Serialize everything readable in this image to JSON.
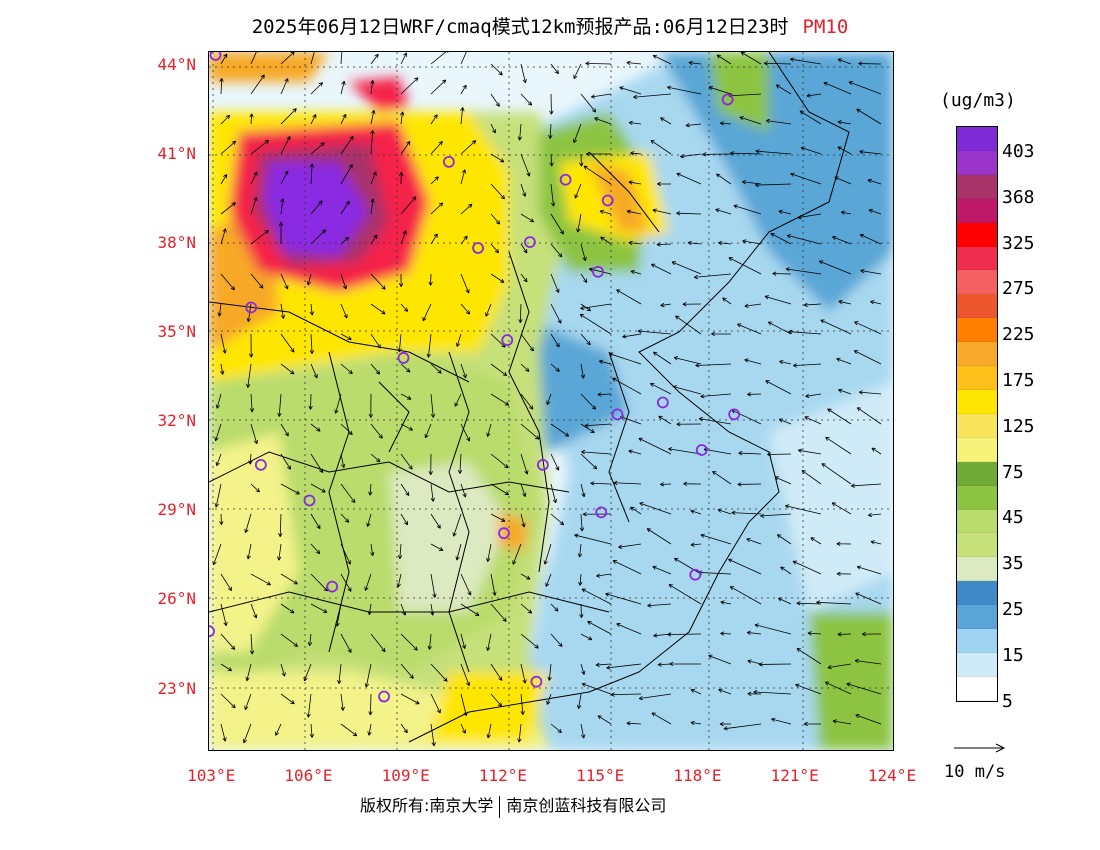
{
  "title": {
    "main": "2025年06月12日WRF/cmaq模式12km预报产品:06月12日23时",
    "pollutant": "PM10"
  },
  "map": {
    "lat_labels": [
      "44°N",
      "41°N",
      "38°N",
      "35°N",
      "32°N",
      "29°N",
      "26°N",
      "23°N"
    ],
    "lon_labels": [
      "103°E",
      "106°E",
      "109°E",
      "112°E",
      "115°E",
      "118°E",
      "121°E",
      "124°E"
    ],
    "lat_values": [
      44,
      41,
      38,
      35,
      32,
      29,
      26,
      23
    ],
    "lon_values": [
      103,
      106,
      109,
      112,
      115,
      118,
      121,
      124
    ],
    "colors": {
      "clean": "#e9f6fc",
      "light_blue": "#a8d8f0",
      "blue": "#5aa6d6",
      "green_light": "#c6e07a",
      "green": "#8cc442",
      "yellow_light": "#f3f38a",
      "yellow": "#ffe600",
      "orange": "#f7a928",
      "red": "#f5204a",
      "purple": "#8a2be2"
    },
    "stations": [
      {
        "lon": 118.9,
        "lat": 42.9
      },
      {
        "lon": 110.3,
        "lat": 40.8
      },
      {
        "lon": 113.9,
        "lat": 40.2
      },
      {
        "lon": 115.2,
        "lat": 39.5
      },
      {
        "lon": 106.9,
        "lat": 38.5
      },
      {
        "lon": 111.2,
        "lat": 37.9
      },
      {
        "lon": 112.8,
        "lat": 38.1
      },
      {
        "lon": 114.9,
        "lat": 37.1
      },
      {
        "lon": 104.2,
        "lat": 35.9
      },
      {
        "lon": 112.1,
        "lat": 34.8
      },
      {
        "lon": 108.9,
        "lat": 34.2
      },
      {
        "lon": 115.5,
        "lat": 32.3
      },
      {
        "lon": 116.9,
        "lat": 32.7
      },
      {
        "lon": 119.1,
        "lat": 32.3
      },
      {
        "lon": 118.1,
        "lat": 31.1
      },
      {
        "lon": 104.5,
        "lat": 30.6
      },
      {
        "lon": 113.2,
        "lat": 30.6
      },
      {
        "lon": 106.0,
        "lat": 29.4
      },
      {
        "lon": 115.0,
        "lat": 29.0
      },
      {
        "lon": 112.0,
        "lat": 28.3
      },
      {
        "lon": 106.7,
        "lat": 26.5
      },
      {
        "lon": 117.9,
        "lat": 26.9
      },
      {
        "lon": 102.9,
        "lat": 25.0
      },
      {
        "lon": 108.3,
        "lat": 22.8
      },
      {
        "lon": 113.0,
        "lat": 23.3
      },
      {
        "lon": 103.1,
        "lat": 44.4
      }
    ]
  },
  "legend": {
    "unit": "(ug/m3)",
    "colors": [
      "#7e2bd6",
      "#9b35c9",
      "#a8326a",
      "#c01868",
      "#ff0000",
      "#ef2d4e",
      "#f56160",
      "#ee5630",
      "#ff8000",
      "#f8a82a",
      "#fdc01a",
      "#ffe600",
      "#f8e45a",
      "#f5f37a",
      "#6fab36",
      "#8cc442",
      "#b9dc6c",
      "#c6e07a",
      "#dde9c0",
      "#3e8ac7",
      "#5ba4d8",
      "#9ed4f2",
      "#d0ebf8",
      "#ffffff"
    ],
    "ticks": [
      "403",
      "368",
      "325",
      "275",
      "225",
      "175",
      "125",
      "75",
      "45",
      "35",
      "25",
      "15",
      "5"
    ],
    "wind_reference": "10 m/s"
  },
  "footer": {
    "rights": "版权所有:南京大学",
    "company": "南京创蓝科技有限公司"
  }
}
